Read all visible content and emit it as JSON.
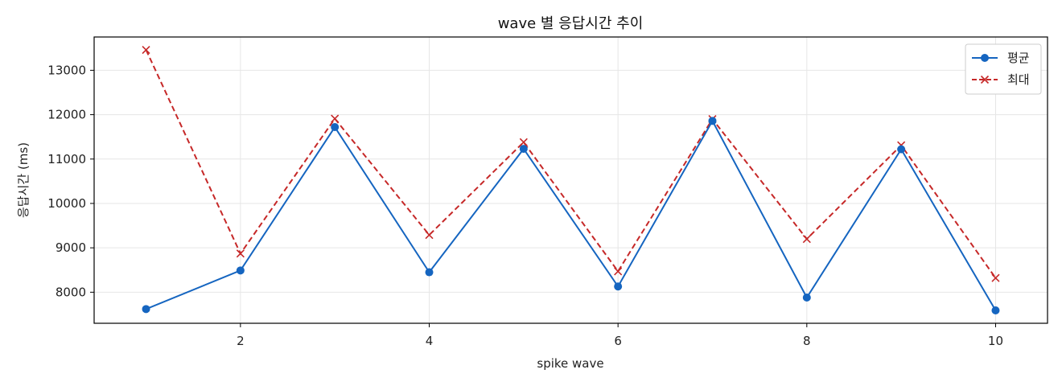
{
  "chart_data": {
    "type": "line",
    "title": "wave 별 응답시간 추이",
    "xlabel": "spike wave",
    "ylabel": "응답시간 (ms)",
    "x": [
      1,
      2,
      3,
      4,
      5,
      6,
      7,
      8,
      9,
      10
    ],
    "xlim": [
      0.45,
      10.55
    ],
    "ylim": [
      7300,
      13750
    ],
    "x_ticks": [
      2,
      4,
      6,
      8,
      10
    ],
    "y_ticks": [
      8000,
      9000,
      10000,
      11000,
      12000,
      13000
    ],
    "grid": true,
    "legend_position": "top-right",
    "series": [
      {
        "name": "평균",
        "color": "#1565c0",
        "marker": "circle",
        "line_style": "solid",
        "values": [
          7620,
          8490,
          11720,
          8450,
          11230,
          8130,
          11860,
          7880,
          11220,
          7590
        ]
      },
      {
        "name": "최대",
        "color": "#c62828",
        "marker": "x",
        "line_style": "dashed",
        "values": [
          13460,
          8870,
          11910,
          9290,
          11380,
          8470,
          11900,
          9200,
          11310,
          8320
        ]
      }
    ]
  }
}
